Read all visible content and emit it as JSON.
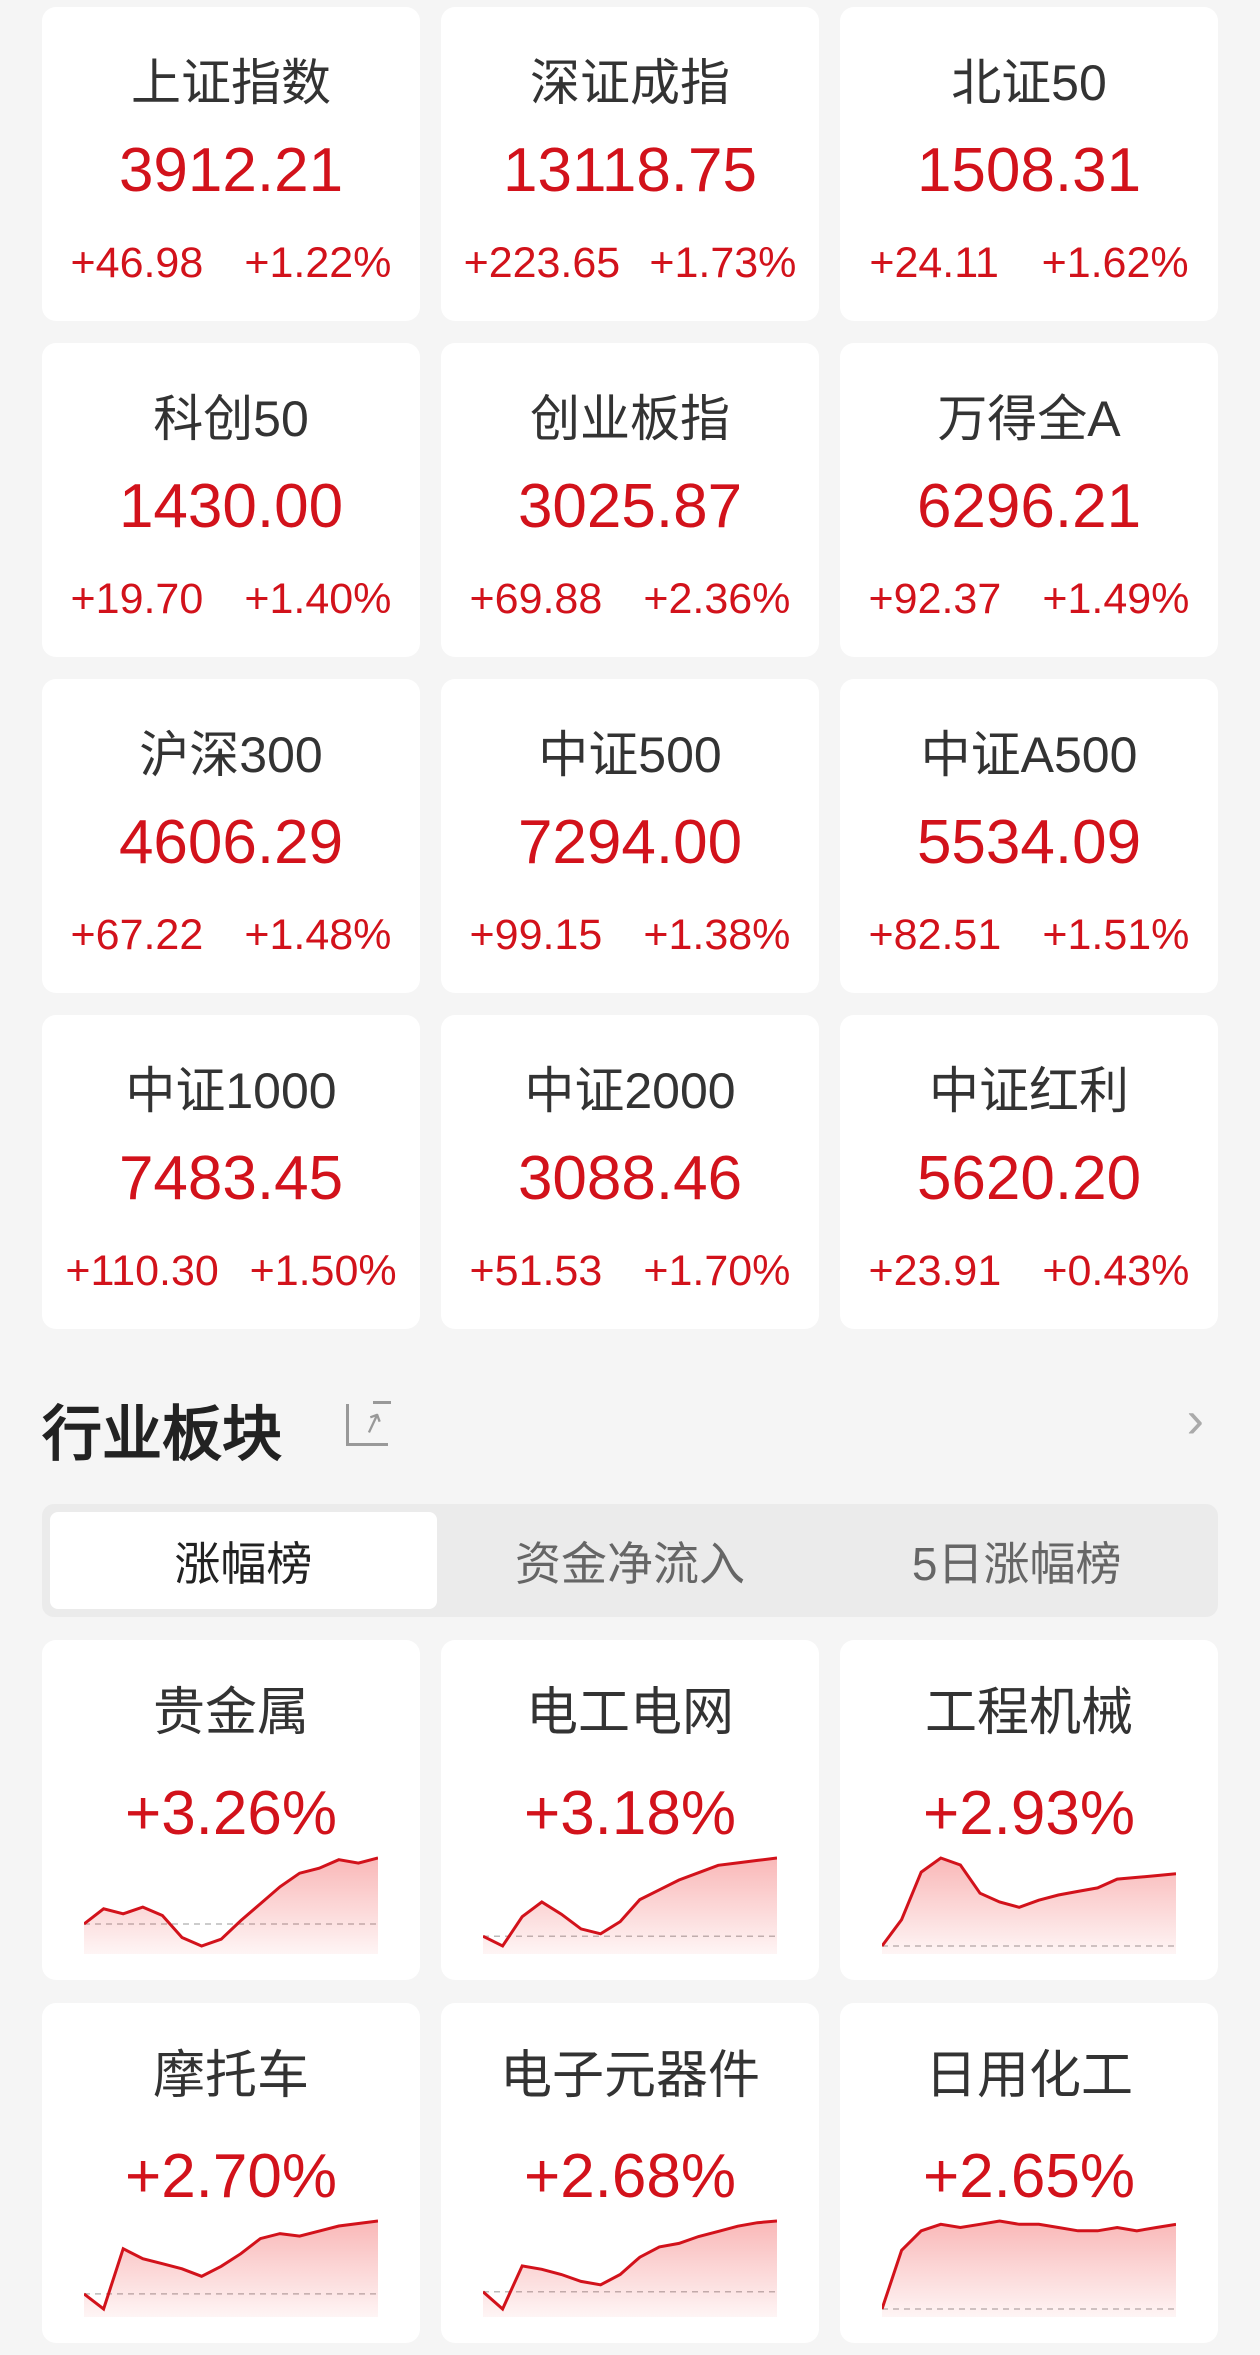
{
  "indices": [
    {
      "name": "上证指数",
      "value": "3912.21",
      "change": "+46.98",
      "pct": "+1.22%"
    },
    {
      "name": "深证成指",
      "value": "13118.75",
      "change": "+223.65",
      "pct": "+1.73%"
    },
    {
      "name": "北证50",
      "value": "1508.31",
      "change": "+24.11",
      "pct": "+1.62%"
    },
    {
      "name": "科创50",
      "value": "1430.00",
      "change": "+19.70",
      "pct": "+1.40%"
    },
    {
      "name": "创业板指",
      "value": "3025.87",
      "change": "+69.88",
      "pct": "+2.36%"
    },
    {
      "name": "万得全A",
      "value": "6296.21",
      "change": "+92.37",
      "pct": "+1.49%"
    },
    {
      "name": "沪深300",
      "value": "4606.29",
      "change": "+67.22",
      "pct": "+1.48%"
    },
    {
      "name": "中证500",
      "value": "7294.00",
      "change": "+99.15",
      "pct": "+1.38%"
    },
    {
      "name": "中证A500",
      "value": "5534.09",
      "change": "+82.51",
      "pct": "+1.51%"
    },
    {
      "name": "中证1000",
      "value": "7483.45",
      "change": "+110.30",
      "pct": "+1.50%"
    },
    {
      "name": "中证2000",
      "value": "3088.46",
      "change": "+51.53",
      "pct": "+1.70%"
    },
    {
      "name": "中证红利",
      "value": "5620.20",
      "change": "+23.91",
      "pct": "+0.43%"
    }
  ],
  "section": {
    "title": "行业板块",
    "share_icon": "share-icon",
    "more_icon": "chevron-right-icon"
  },
  "tabs": [
    {
      "label": "涨幅榜",
      "active": true
    },
    {
      "label": "资金净流入",
      "active": false
    },
    {
      "label": "5日涨幅榜",
      "active": false
    }
  ],
  "colors": {
    "up": "#d2121b",
    "text": "#333333",
    "bg": "#f5f5f5"
  },
  "sectors": [
    {
      "name": "贵金属",
      "pct": "+3.26%",
      "trend": [
        0,
        0.9,
        0.6,
        1.0,
        0.5,
        -0.8,
        -1.3,
        -0.9,
        0.2,
        1.2,
        2.2,
        3.0,
        3.3,
        3.8,
        3.6,
        3.9
      ]
    },
    {
      "name": "电工电网",
      "pct": "+3.18%",
      "trend": [
        0,
        -0.4,
        0.8,
        1.4,
        0.9,
        0.3,
        0.1,
        0.6,
        1.5,
        1.9,
        2.3,
        2.6,
        2.9,
        3.0,
        3.1,
        3.2
      ]
    },
    {
      "name": "工程机械",
      "pct": "+2.93%",
      "trend": [
        0,
        1.5,
        4.2,
        5.0,
        4.6,
        3.0,
        2.5,
        2.2,
        2.6,
        2.9,
        3.1,
        3.3,
        3.8,
        3.9,
        4.0,
        4.1
      ]
    },
    {
      "name": "摩托车",
      "pct": "+2.70%",
      "trend": [
        0,
        -0.6,
        1.8,
        1.4,
        1.2,
        1.0,
        0.7,
        1.1,
        1.6,
        2.2,
        2.4,
        2.3,
        2.5,
        2.7,
        2.8,
        2.9
      ]
    },
    {
      "name": "电子元器件",
      "pct": "+2.68%",
      "trend": [
        0,
        -1.0,
        1.5,
        1.3,
        1.0,
        0.6,
        0.4,
        1.0,
        2.0,
        2.6,
        2.8,
        3.2,
        3.5,
        3.8,
        4.0,
        4.1
      ]
    },
    {
      "name": "日用化工",
      "pct": "+2.65%",
      "trend": [
        0,
        1.8,
        2.4,
        2.6,
        2.5,
        2.6,
        2.7,
        2.6,
        2.6,
        2.5,
        2.4,
        2.4,
        2.5,
        2.4,
        2.5,
        2.6
      ]
    }
  ]
}
